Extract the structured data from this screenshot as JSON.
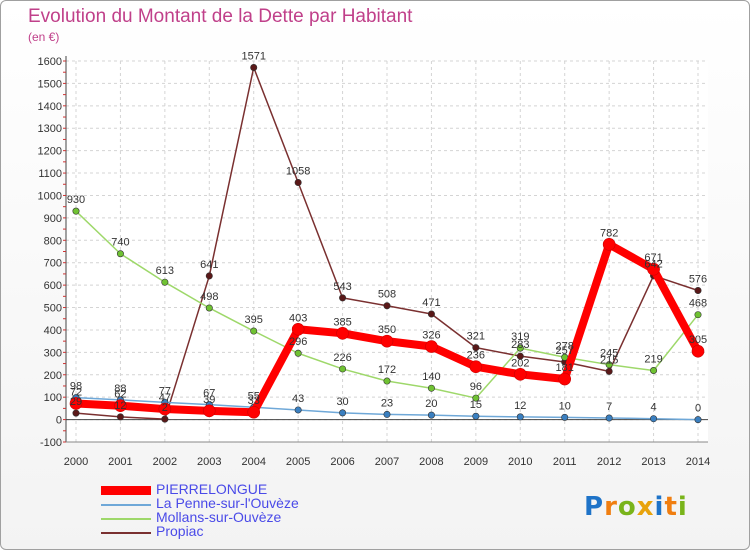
{
  "chart_data": {
    "type": "line",
    "title": "Evolution du Montant de la Dette par Habitant",
    "subtitle": "(en €)",
    "x": [
      "2000",
      "2001",
      "2002",
      "2003",
      "2004",
      "2005",
      "2006",
      "2007",
      "2008",
      "2009",
      "2010",
      "2011",
      "2012",
      "2013",
      "2014"
    ],
    "yticks": [
      "1600",
      "1500",
      "1400",
      "1300",
      "1200",
      "1100",
      "1000",
      "900",
      "800",
      "700",
      "600",
      "500",
      "400",
      "300",
      "200",
      "100",
      "0",
      "-100"
    ],
    "ylim": [
      -100,
      1600
    ],
    "grid": true,
    "series": [
      {
        "name": "PIERRELONGUE",
        "color": "#ff0000",
        "marker": "#cc0000",
        "width": 8,
        "values": [
          72,
          62,
          47,
          39,
          33,
          403,
          385,
          350,
          326,
          236,
          202,
          181,
          782,
          671,
          305
        ],
        "labels": [
          "72",
          "62",
          "47",
          "39",
          "33",
          "403",
          "385",
          "350",
          "326",
          "236",
          "202",
          "181",
          "782",
          "671",
          "305"
        ]
      },
      {
        "name": "La Penne-sur-l'Ouvèze",
        "color": "#6fa8d8",
        "marker": "#3a7fc0",
        "width": 1.5,
        "values": [
          98,
          88,
          77,
          67,
          55,
          43,
          30,
          23,
          20,
          15,
          12,
          10,
          7,
          4,
          0
        ],
        "labels": [
          "98",
          "88",
          "77",
          "67",
          "55",
          "43",
          "30",
          "23",
          "20",
          "15",
          "12",
          "10",
          "7",
          "4",
          "0"
        ]
      },
      {
        "name": "Mollans-sur-Ouvèze",
        "color": "#9ed86a",
        "marker": "#6fc232",
        "width": 1.5,
        "values": [
          930,
          740,
          613,
          498,
          395,
          296,
          226,
          172,
          140,
          96,
          319,
          278,
          245,
          219,
          468
        ],
        "labels": [
          "930",
          "740",
          "613",
          "498",
          "395",
          "296",
          "226",
          "172",
          "140",
          "96",
          "319",
          "278",
          "245",
          "219",
          "468"
        ]
      },
      {
        "name": "Propiac",
        "color": "#7a3030",
        "marker": "#5a1818",
        "width": 1.5,
        "values": [
          29,
          12,
          2,
          641,
          1571,
          1058,
          543,
          508,
          471,
          321,
          283,
          257,
          215,
          642,
          576
        ],
        "labels": [
          "29",
          "12",
          "2",
          "641",
          "1571",
          "1058",
          "543",
          "508",
          "471",
          "321",
          "283",
          "257",
          "215",
          "642",
          "576"
        ]
      }
    ]
  },
  "legend": [
    "PIERRELONGUE",
    "La Penne-sur-l'Ouvèze",
    "Mollans-sur-Ouvèze",
    "Propiac"
  ],
  "logo": {
    "text": "Proxiti",
    "letters": [
      "P",
      "r",
      "o",
      "x",
      "i",
      "t",
      "i"
    ],
    "colors": [
      "#1e73c8",
      "#f07e10",
      "#79b41a",
      "#e8a30c",
      "#1e73c8",
      "#f07e10",
      "#79b41a"
    ]
  }
}
